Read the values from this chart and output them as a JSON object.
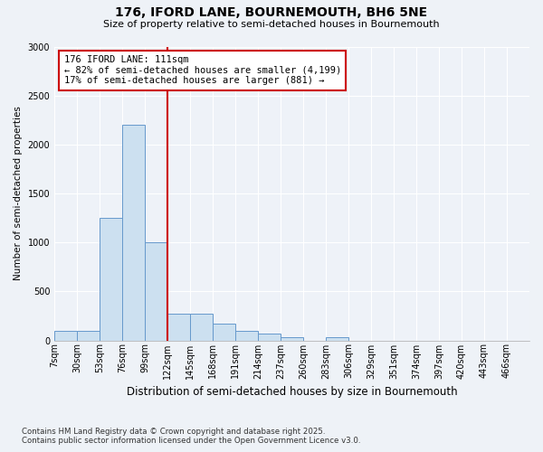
{
  "title1": "176, IFORD LANE, BOURNEMOUTH, BH6 5NE",
  "title2": "Size of property relative to semi-detached houses in Bournemouth",
  "xlabel": "Distribution of semi-detached houses by size in Bournemouth",
  "ylabel": "Number of semi-detached properties",
  "footnote1": "Contains HM Land Registry data © Crown copyright and database right 2025.",
  "footnote2": "Contains public sector information licensed under the Open Government Licence v3.0.",
  "bin_labels": [
    "7sqm",
    "30sqm",
    "53sqm",
    "76sqm",
    "99sqm",
    "122sqm",
    "145sqm",
    "168sqm",
    "191sqm",
    "214sqm",
    "237sqm",
    "260sqm",
    "283sqm",
    "306sqm",
    "329sqm",
    "351sqm",
    "374sqm",
    "397sqm",
    "420sqm",
    "443sqm",
    "466sqm"
  ],
  "bar_values": [
    100,
    100,
    1250,
    2200,
    1000,
    270,
    270,
    170,
    100,
    70,
    30,
    0,
    30,
    0,
    0,
    0,
    0,
    0,
    0,
    0,
    0
  ],
  "bar_color": "#cce0f0",
  "bar_edge_color": "#6699cc",
  "vline_x_index": 5,
  "vline_color": "#cc0000",
  "ylim": [
    0,
    3000
  ],
  "yticks": [
    0,
    500,
    1000,
    1500,
    2000,
    2500,
    3000
  ],
  "annotation_title": "176 IFORD LANE: 111sqm",
  "annotation_line1": "← 82% of semi-detached houses are smaller (4,199)",
  "annotation_line2": "17% of semi-detached houses are larger (881) →",
  "annotation_box_color": "#cc0000",
  "bg_color": "#eef2f7",
  "plot_bg_color": "#eef2f8"
}
